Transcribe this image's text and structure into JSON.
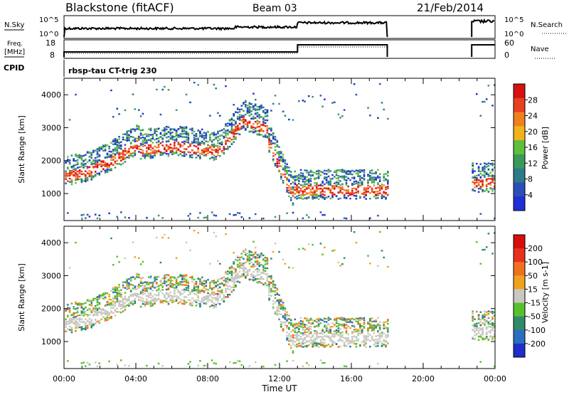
{
  "header": {
    "station": "Blackstone (fitACF)",
    "beam": "Beam 03",
    "date": "21/Feb/2014"
  },
  "panels": {
    "nsky": {
      "left_label": "N.Sky",
      "right_label": "N.Search",
      "left_ticks": [
        "10^5",
        "10^0"
      ],
      "right_ticks": [
        "10^5",
        "10^0"
      ]
    },
    "freq": {
      "left_label_1": "Freq.",
      "left_label_2": "[MHz]",
      "right_label": "Nave",
      "left_ticks": [
        "18",
        "8"
      ],
      "right_ticks": [
        "60",
        "0"
      ]
    },
    "cpid": {
      "label": "CPID",
      "value": "rbsp-tau CT-trig 230"
    }
  },
  "colors": {
    "power": [
      "#1f2fd6",
      "#2b4fb8",
      "#2e7a8a",
      "#3a9a5a",
      "#5ec03a",
      "#f2b21c",
      "#f0801e",
      "#e8401e",
      "#d81010"
    ],
    "velocity": [
      "#1d2fc8",
      "#2b6ec0",
      "#2e8a6a",
      "#58c02e",
      "#c8c8c0",
      "#f0a21e",
      "#f0701e",
      "#e8301e",
      "#d80e0e"
    ]
  },
  "chart_data": [
    {
      "type": "heatmap",
      "name": "power",
      "ylabel": "Slant Range [km]",
      "colorbar_label": "Power [dB]",
      "colorbar_ticks": [
        "28",
        "24",
        "20",
        "16",
        "12",
        "8",
        "4"
      ],
      "y_ticks": [
        "4000",
        "3000",
        "2000",
        "1000"
      ],
      "ylim": [
        180,
        4500
      ],
      "xlim": [
        0,
        24
      ],
      "x_ticks": [
        "00:00",
        "04:00",
        "08:00",
        "12:00",
        "16:00",
        "20:00",
        "00:00"
      ],
      "xlabel": "Time UT",
      "scale_range": [
        0,
        32
      ]
    },
    {
      "type": "heatmap",
      "name": "velocity",
      "ylabel": "Slant Range [km]",
      "colorbar_label": "Velocity [m s-1]",
      "colorbar_ticks": [
        "200",
        "100",
        "50",
        "15",
        "-15",
        "-50",
        "-100",
        "-200"
      ],
      "y_ticks": [
        "4000",
        "3000",
        "2000",
        "1000"
      ],
      "ylim": [
        180,
        4500
      ],
      "xlim": [
        0,
        24
      ],
      "scale_range": [
        -250,
        250
      ]
    }
  ]
}
